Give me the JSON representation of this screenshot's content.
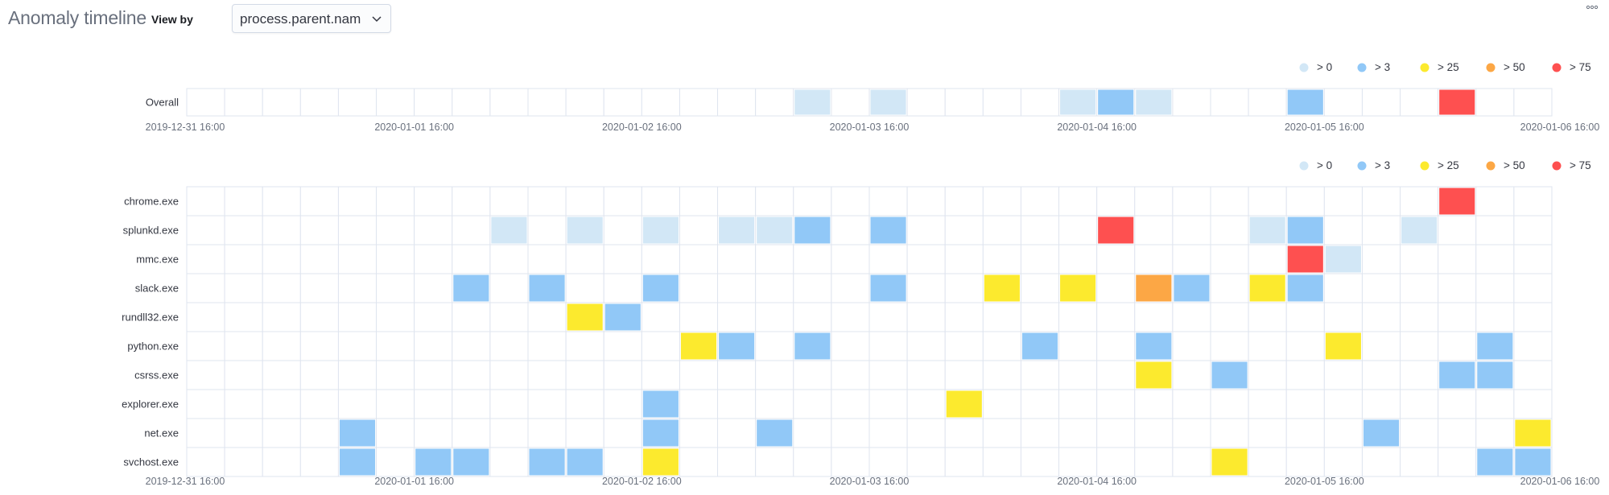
{
  "header": {
    "title": "Anomaly timeline",
    "view_by_label": "View by",
    "view_by_value": "process.parent.nam"
  },
  "icons": {
    "dropdown": "chevron-down-icon",
    "menu": "more-dots-icon"
  },
  "colors": {
    "gt0": "#d2e7f6",
    "gt3": "#91c8f7",
    "gt25": "#fcea2e",
    "gt50": "#fca745",
    "gt75": "#fe5050",
    "grid": "#dfe5ef"
  },
  "chart_data": [
    {
      "type": "heatmap",
      "name": "Overall",
      "legend": [
        {
          "label": "> 0",
          "color": "#d2e7f6"
        },
        {
          "label": "> 3",
          "color": "#91c8f7"
        },
        {
          "label": "> 25",
          "color": "#fcea2e"
        },
        {
          "label": "> 50",
          "color": "#fca745"
        },
        {
          "label": "> 75",
          "color": "#fe5050"
        }
      ],
      "legend_position": "top-right",
      "x_ticks": [
        "2019-12-31 16:00",
        "2020-01-01 16:00",
        "2020-01-02 16:00",
        "2020-01-03 16:00",
        "2020-01-04 16:00",
        "2020-01-05 16:00",
        "2020-01-06 16:00"
      ],
      "bins": 36,
      "rows": [
        {
          "label": "Overall",
          "cells": [
            {
              "bin": 16,
              "severity": "gt0"
            },
            {
              "bin": 18,
              "severity": "gt0"
            },
            {
              "bin": 23,
              "severity": "gt0"
            },
            {
              "bin": 24,
              "severity": "gt3"
            },
            {
              "bin": 25,
              "severity": "gt0"
            },
            {
              "bin": 29,
              "severity": "gt3"
            },
            {
              "bin": 33,
              "severity": "gt75"
            }
          ]
        }
      ]
    },
    {
      "type": "heatmap",
      "name": "process.parent.nam",
      "legend": [
        {
          "label": "> 0",
          "color": "#d2e7f6"
        },
        {
          "label": "> 3",
          "color": "#91c8f7"
        },
        {
          "label": "> 25",
          "color": "#fcea2e"
        },
        {
          "label": "> 50",
          "color": "#fca745"
        },
        {
          "label": "> 75",
          "color": "#fe5050"
        }
      ],
      "legend_position": "top-right",
      "x_ticks": [
        "2019-12-31 16:00",
        "2020-01-01 16:00",
        "2020-01-02 16:00",
        "2020-01-03 16:00",
        "2020-01-04 16:00",
        "2020-01-05 16:00",
        "2020-01-06 16:00"
      ],
      "bins": 36,
      "rows": [
        {
          "label": "chrome.exe",
          "cells": [
            {
              "bin": 33,
              "severity": "gt75"
            }
          ]
        },
        {
          "label": "splunkd.exe",
          "cells": [
            {
              "bin": 8,
              "severity": "gt0"
            },
            {
              "bin": 10,
              "severity": "gt0"
            },
            {
              "bin": 12,
              "severity": "gt0"
            },
            {
              "bin": 14,
              "severity": "gt0"
            },
            {
              "bin": 15,
              "severity": "gt0"
            },
            {
              "bin": 16,
              "severity": "gt3"
            },
            {
              "bin": 18,
              "severity": "gt3"
            },
            {
              "bin": 24,
              "severity": "gt75"
            },
            {
              "bin": 28,
              "severity": "gt0"
            },
            {
              "bin": 29,
              "severity": "gt3"
            },
            {
              "bin": 32,
              "severity": "gt0"
            }
          ]
        },
        {
          "label": "mmc.exe",
          "cells": [
            {
              "bin": 29,
              "severity": "gt75"
            },
            {
              "bin": 30,
              "severity": "gt0"
            }
          ]
        },
        {
          "label": "slack.exe",
          "cells": [
            {
              "bin": 7,
              "severity": "gt3"
            },
            {
              "bin": 9,
              "severity": "gt3"
            },
            {
              "bin": 12,
              "severity": "gt3"
            },
            {
              "bin": 18,
              "severity": "gt3"
            },
            {
              "bin": 21,
              "severity": "gt25"
            },
            {
              "bin": 23,
              "severity": "gt25"
            },
            {
              "bin": 25,
              "severity": "gt50"
            },
            {
              "bin": 26,
              "severity": "gt3"
            },
            {
              "bin": 28,
              "severity": "gt25"
            },
            {
              "bin": 29,
              "severity": "gt3"
            }
          ]
        },
        {
          "label": "rundll32.exe",
          "cells": [
            {
              "bin": 10,
              "severity": "gt25"
            },
            {
              "bin": 11,
              "severity": "gt3"
            }
          ]
        },
        {
          "label": "python.exe",
          "cells": [
            {
              "bin": 13,
              "severity": "gt25"
            },
            {
              "bin": 14,
              "severity": "gt3"
            },
            {
              "bin": 16,
              "severity": "gt3"
            },
            {
              "bin": 22,
              "severity": "gt3"
            },
            {
              "bin": 25,
              "severity": "gt3"
            },
            {
              "bin": 30,
              "severity": "gt25"
            },
            {
              "bin": 34,
              "severity": "gt3"
            }
          ]
        },
        {
          "label": "csrss.exe",
          "cells": [
            {
              "bin": 25,
              "severity": "gt25"
            },
            {
              "bin": 27,
              "severity": "gt3"
            },
            {
              "bin": 33,
              "severity": "gt3"
            },
            {
              "bin": 34,
              "severity": "gt3"
            }
          ]
        },
        {
          "label": "explorer.exe",
          "cells": [
            {
              "bin": 12,
              "severity": "gt3"
            },
            {
              "bin": 20,
              "severity": "gt25"
            }
          ]
        },
        {
          "label": "net.exe",
          "cells": [
            {
              "bin": 4,
              "severity": "gt3"
            },
            {
              "bin": 12,
              "severity": "gt3"
            },
            {
              "bin": 15,
              "severity": "gt3"
            },
            {
              "bin": 31,
              "severity": "gt3"
            },
            {
              "bin": 35,
              "severity": "gt25"
            }
          ]
        },
        {
          "label": "svchost.exe",
          "cells": [
            {
              "bin": 4,
              "severity": "gt3"
            },
            {
              "bin": 6,
              "severity": "gt3"
            },
            {
              "bin": 7,
              "severity": "gt3"
            },
            {
              "bin": 9,
              "severity": "gt3"
            },
            {
              "bin": 10,
              "severity": "gt3"
            },
            {
              "bin": 12,
              "severity": "gt25"
            },
            {
              "bin": 27,
              "severity": "gt25"
            },
            {
              "bin": 34,
              "severity": "gt3"
            },
            {
              "bin": 35,
              "severity": "gt3"
            }
          ]
        }
      ]
    }
  ]
}
